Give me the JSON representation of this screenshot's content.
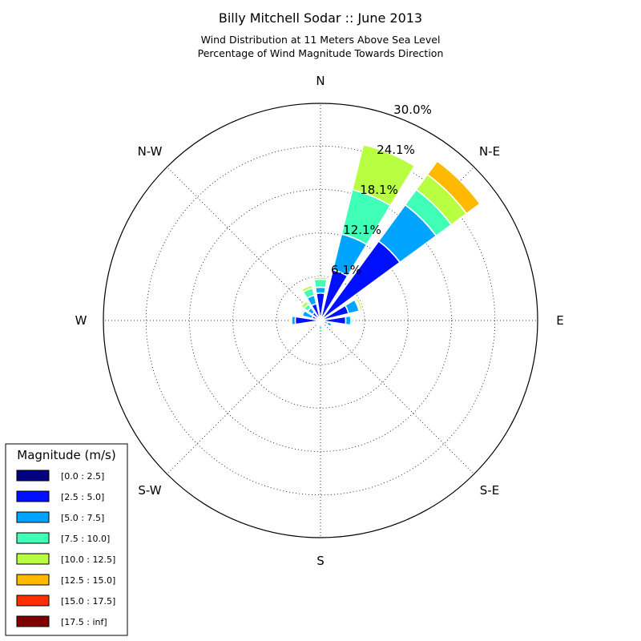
{
  "chart_data": {
    "type": "windrose",
    "title": "Billy Mitchell Sodar :: June 2013",
    "subtitle_lines": [
      "Wind Distribution at 11 Meters Above Sea Level",
      "Percentage of Wind Magnitude Towards Direction"
    ],
    "directions": [
      "N",
      "N-E",
      "E",
      "S-E",
      "S",
      "S-W",
      "W",
      "N-W"
    ],
    "radial_ticks": [
      "6.1%",
      "12.1%",
      "18.1%",
      "24.1%",
      "30.0%"
    ],
    "radial_tick_values": [
      6.1,
      12.1,
      18.1,
      24.1,
      30.0
    ],
    "rmax": 30.0,
    "grid": true,
    "legend": {
      "title": "Magnitude (m/s)",
      "placement": "bottom-left",
      "items": [
        {
          "label": "[0.0 : 2.5]",
          "color": "#000080"
        },
        {
          "label": "[2.5 : 5.0]",
          "color": "#0010ff"
        },
        {
          "label": "[5.0 : 7.5]",
          "color": "#00a4ff"
        },
        {
          "label": "[7.5 : 10.0]",
          "color": "#40ffb7"
        },
        {
          "label": "[10.0 : 12.5]",
          "color": "#b7ff40"
        },
        {
          "label": "[12.5 : 15.0]",
          "color": "#ffb900"
        },
        {
          "label": "[15.0 : 17.5]",
          "color": "#ff3000"
        },
        {
          "label": "[17.5 : inf]",
          "color": "#800000"
        }
      ]
    },
    "sectors": [
      {
        "direction_deg": 0,
        "cumulative": [
          0.2,
          3.8,
          4.6,
          5.7,
          6.0
        ]
      },
      {
        "direction_deg": 22.5,
        "cumulative": [
          0.3,
          7.2,
          12.3,
          18.6,
          25.0
        ]
      },
      {
        "direction_deg": 45,
        "cumulative": [
          0.3,
          13.6,
          19.8,
          22.4,
          25.0,
          27.3
        ]
      },
      {
        "direction_deg": 67.5,
        "cumulative": [
          0.3,
          4.0,
          5.5,
          5.7,
          6.0
        ]
      },
      {
        "direction_deg": 90,
        "cumulative": [
          0.2,
          3.5,
          4.2,
          4.4
        ]
      },
      {
        "direction_deg": 112.5,
        "cumulative": [
          0.2,
          1.0,
          1.6
        ]
      },
      {
        "direction_deg": 135,
        "cumulative": [
          0.2,
          0.7
        ]
      },
      {
        "direction_deg": 157.5,
        "cumulative": [
          0.1,
          0.4
        ]
      },
      {
        "direction_deg": 180,
        "cumulative": [
          0.1,
          0.4,
          1.2,
          1.6
        ]
      },
      {
        "direction_deg": 202.5,
        "cumulative": [
          0.1,
          0.5
        ]
      },
      {
        "direction_deg": 225,
        "cumulative": [
          0.1,
          0.5
        ]
      },
      {
        "direction_deg": 247.5,
        "cumulative": [
          0.1,
          0.8
        ]
      },
      {
        "direction_deg": 270,
        "cumulative": [
          0.2,
          3.5,
          4.0,
          4.2
        ]
      },
      {
        "direction_deg": 292.5,
        "cumulative": [
          0.2,
          1.2,
          2.6,
          2.8
        ]
      },
      {
        "direction_deg": 315,
        "cumulative": [
          0.2,
          1.4,
          2.2,
          2.8,
          3.3
        ]
      },
      {
        "direction_deg": 337.5,
        "cumulative": [
          0.2,
          2.4,
          3.6,
          4.6,
          5.0
        ]
      }
    ]
  }
}
